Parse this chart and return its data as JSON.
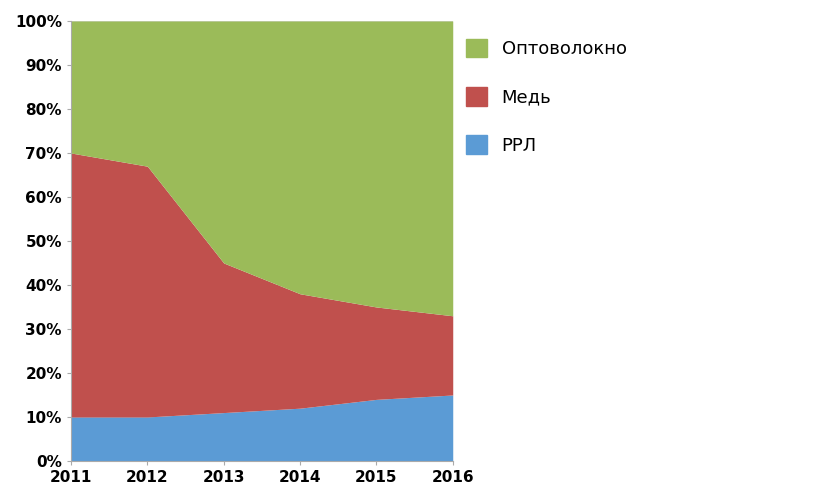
{
  "years": [
    2011,
    2012,
    2013,
    2014,
    2015,
    2016
  ],
  "rrl": [
    10,
    10,
    11,
    12,
    14,
    15
  ],
  "med": [
    60,
    57,
    34,
    26,
    21,
    18
  ],
  "opto": [
    30,
    33,
    55,
    62,
    65,
    67
  ],
  "colors": {
    "rrl": "#5b9bd5",
    "med": "#c0504d",
    "opto": "#9bbb59"
  },
  "labels": {
    "rrl": "РРЛ",
    "med": "Медь",
    "opto": "Оптоволокно"
  },
  "ylim": [
    0,
    100
  ],
  "xlim": [
    2011,
    2016
  ],
  "yticks": [
    0,
    10,
    20,
    30,
    40,
    50,
    60,
    70,
    80,
    90,
    100
  ],
  "xticks": [
    2011,
    2012,
    2013,
    2014,
    2015,
    2016
  ],
  "fig_bg": "#ffffff",
  "plot_bg": "#ffffff",
  "legend_fontsize": 13,
  "tick_fontsize": 11,
  "tick_fontweight": "bold"
}
